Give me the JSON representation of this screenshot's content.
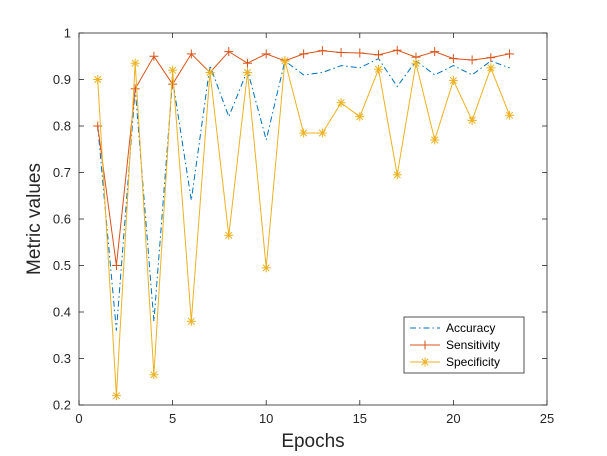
{
  "chart_data": {
    "type": "line",
    "title": "",
    "xlabel": "Epochs",
    "ylabel": "Metric values",
    "xlim": [
      0,
      25
    ],
    "ylim": [
      0.2,
      1
    ],
    "xticks": [
      "0",
      "5",
      "10",
      "15",
      "20",
      "25"
    ],
    "yticks": [
      "0.2",
      "0.3",
      "0.4",
      "0.5",
      "0.6",
      "0.7",
      "0.8",
      "0.9",
      "1"
    ],
    "grid": false,
    "legend_position": "bottom-right",
    "x": [
      1,
      2,
      3,
      4,
      5,
      6,
      7,
      8,
      9,
      10,
      11,
      12,
      13,
      14,
      15,
      16,
      17,
      18,
      19,
      20,
      21,
      22,
      23
    ],
    "series": [
      {
        "name": "Accuracy",
        "color": "#0072BD",
        "style": "dash-dot",
        "marker": "none",
        "values": [
          0.8,
          0.36,
          0.88,
          0.38,
          0.9,
          0.64,
          0.93,
          0.82,
          0.92,
          0.77,
          0.94,
          0.91,
          0.915,
          0.93,
          0.925,
          0.945,
          0.885,
          0.94,
          0.91,
          0.93,
          0.91,
          0.94,
          0.925
        ]
      },
      {
        "name": "Sensitivity",
        "color": "#D95319",
        "style": "solid",
        "marker": "plus",
        "values": [
          0.8,
          0.5,
          0.88,
          0.95,
          0.89,
          0.955,
          0.915,
          0.96,
          0.935,
          0.955,
          0.94,
          0.955,
          0.962,
          0.958,
          0.957,
          0.953,
          0.963,
          0.948,
          0.96,
          0.945,
          0.942,
          0.947,
          0.955
        ]
      },
      {
        "name": "Specificity",
        "color": "#EDB120",
        "style": "solid",
        "marker": "asterisk",
        "values": [
          0.9,
          0.22,
          0.935,
          0.265,
          0.92,
          0.38,
          0.915,
          0.565,
          0.915,
          0.495,
          0.94,
          0.785,
          0.785,
          0.85,
          0.82,
          0.922,
          0.695,
          0.935,
          0.77,
          0.898,
          0.812,
          0.925,
          0.823
        ]
      }
    ]
  }
}
